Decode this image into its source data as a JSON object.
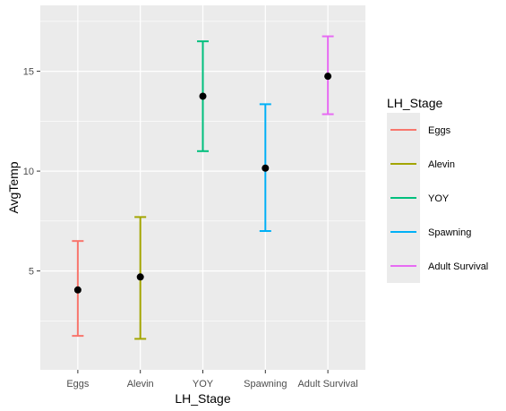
{
  "chart_data": {
    "type": "errorbar",
    "xlabel": "LH_Stage",
    "ylabel": "AvgTemp",
    "categories": [
      "Eggs",
      "Alevin",
      "YOY",
      "Spawning",
      "Adult Survival"
    ],
    "mean": [
      4.05,
      4.7,
      13.75,
      10.15,
      14.75
    ],
    "lower": [
      1.75,
      1.6,
      11.0,
      7.0,
      12.85
    ],
    "upper": [
      6.5,
      7.7,
      16.5,
      13.35,
      16.75
    ],
    "colors": [
      "#F8766D",
      "#A3A500",
      "#00BF7D",
      "#00B0F6",
      "#E76BF3"
    ],
    "y_ticks": [
      5,
      10,
      15
    ],
    "ylim": [
      0.05,
      18.3
    ],
    "grid": true,
    "panel_background": "#EBEBEB",
    "point_color": "#000000",
    "legend": {
      "title": "LH_Stage",
      "placement": "right",
      "entries": [
        "Eggs",
        "Alevin",
        "YOY",
        "Spawning",
        "Adult Survival"
      ]
    }
  }
}
